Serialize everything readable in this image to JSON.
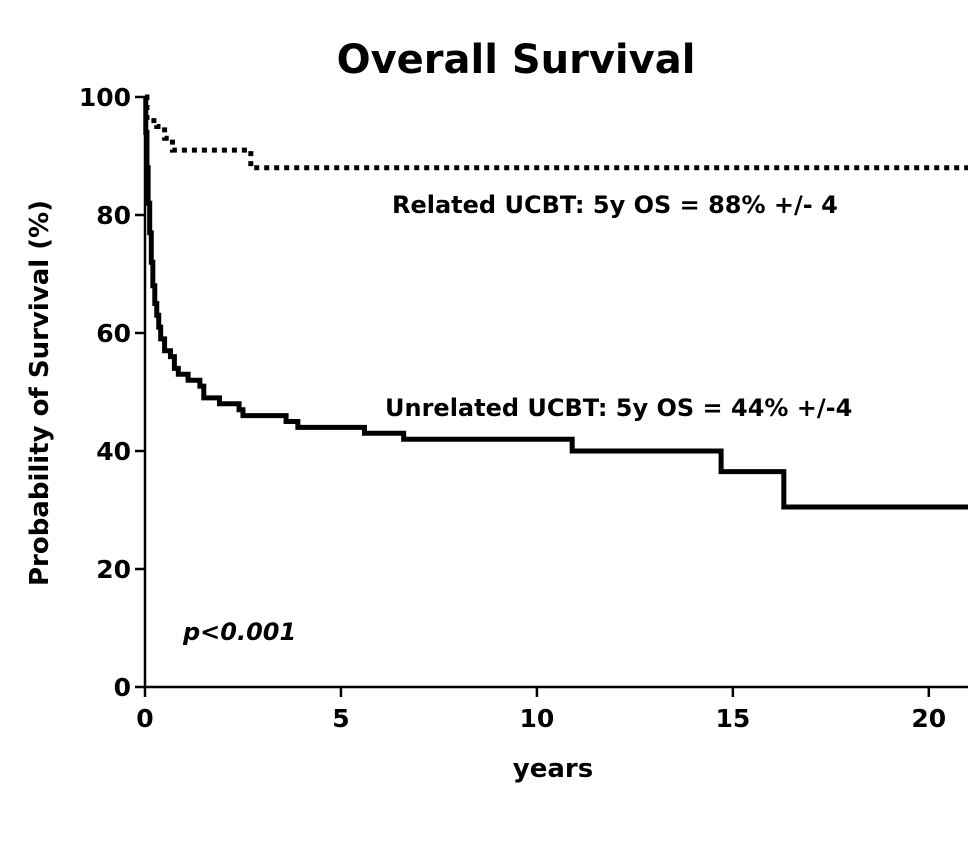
{
  "chart_data": {
    "type": "line",
    "title": "Overall Survival",
    "xlabel": "years",
    "ylabel": "Probability of Survival (%)",
    "xlim": [
      0,
      21
    ],
    "ylim": [
      0,
      100
    ],
    "xticks": [
      0,
      5,
      10,
      15,
      20
    ],
    "yticks": [
      0,
      20,
      40,
      60,
      80,
      100
    ],
    "grid": false,
    "legend": "none",
    "series": [
      {
        "name": "Related UCBT: 5y OS = 88% +/- 4",
        "style": "dotted",
        "color": "#000000",
        "steps": [
          [
            0,
            100
          ],
          [
            0.05,
            96
          ],
          [
            0.3,
            95
          ],
          [
            0.5,
            93
          ],
          [
            0.7,
            91
          ],
          [
            2.7,
            88
          ],
          [
            21,
            88
          ]
        ]
      },
      {
        "name": "Unrelated UCBT: 5y OS = 44% +/-4",
        "style": "solid",
        "color": "#000000",
        "steps": [
          [
            0,
            100
          ],
          [
            0.02,
            94
          ],
          [
            0.05,
            88
          ],
          [
            0.08,
            82
          ],
          [
            0.12,
            77
          ],
          [
            0.16,
            72
          ],
          [
            0.2,
            68
          ],
          [
            0.25,
            65
          ],
          [
            0.3,
            63
          ],
          [
            0.35,
            61
          ],
          [
            0.4,
            59
          ],
          [
            0.5,
            57
          ],
          [
            0.65,
            56
          ],
          [
            0.75,
            54
          ],
          [
            0.85,
            53
          ],
          [
            1.1,
            52
          ],
          [
            1.4,
            51
          ],
          [
            1.5,
            49
          ],
          [
            1.9,
            48
          ],
          [
            2.4,
            47
          ],
          [
            2.5,
            46
          ],
          [
            3.6,
            45
          ],
          [
            3.9,
            44
          ],
          [
            5.6,
            43
          ],
          [
            6.6,
            42
          ],
          [
            10.9,
            40
          ],
          [
            14.7,
            36.5
          ],
          [
            16.3,
            30.5
          ],
          [
            21,
            30.5
          ]
        ]
      }
    ],
    "annotations": {
      "related_label": "Related UCBT: 5y OS = 88% +/- 4",
      "unrelated_label": "Unrelated UCBT: 5y OS = 44% +/-4",
      "p_value": "p<0.001"
    }
  }
}
